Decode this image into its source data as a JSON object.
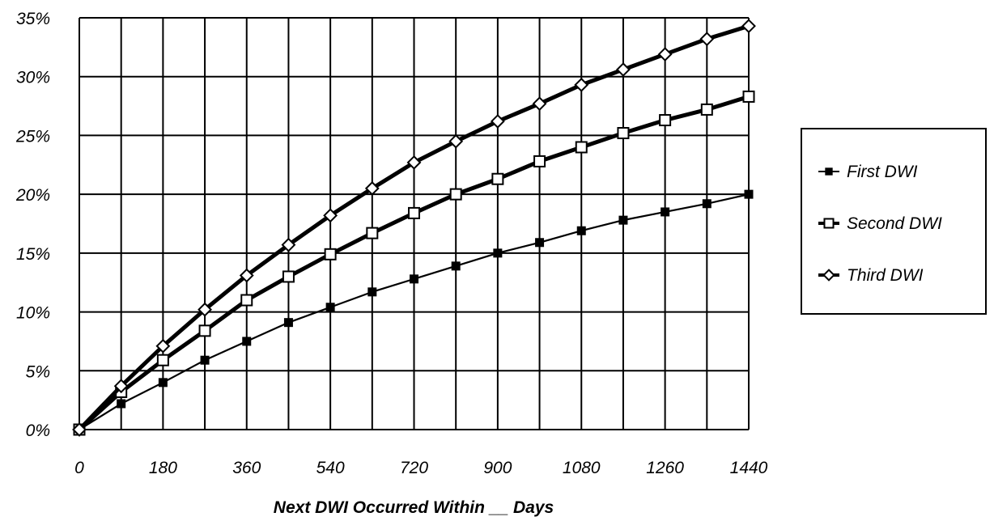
{
  "chart_data": {
    "type": "line",
    "x": [
      0,
      90,
      180,
      270,
      360,
      450,
      540,
      630,
      720,
      810,
      900,
      990,
      1080,
      1170,
      1260,
      1350,
      1440
    ],
    "xticks": [
      "0",
      "180",
      "360",
      "540",
      "720",
      "900",
      "1080",
      "1260",
      "1440"
    ],
    "yticks": [
      "0%",
      "5%",
      "10%",
      "15%",
      "20%",
      "25%",
      "30%",
      "35%"
    ],
    "xlim": [
      0,
      1440
    ],
    "ylim": [
      0,
      35
    ],
    "xlabel": "Next DWI Occurred Within __ Days",
    "ylabel": "",
    "grid": true,
    "legend_position": "right",
    "series": [
      {
        "name": "First DWI",
        "marker": "filled-square",
        "line": "thin",
        "values": [
          0,
          2.2,
          4.0,
          5.9,
          7.5,
          9.1,
          10.4,
          11.7,
          12.8,
          13.9,
          15.0,
          15.9,
          16.9,
          17.8,
          18.5,
          19.2,
          20.0
        ]
      },
      {
        "name": "Second DWI",
        "marker": "open-square",
        "line": "thick",
        "values": [
          0,
          3.2,
          5.9,
          8.4,
          11.0,
          13.0,
          14.9,
          16.7,
          18.4,
          20.0,
          21.3,
          22.8,
          24.0,
          25.2,
          26.3,
          27.2,
          28.3
        ]
      },
      {
        "name": "Third DWI",
        "marker": "open-diamond",
        "line": "thick",
        "values": [
          0,
          3.7,
          7.1,
          10.2,
          13.1,
          15.7,
          18.2,
          20.5,
          22.7,
          24.5,
          26.2,
          27.7,
          29.3,
          30.6,
          31.9,
          33.2,
          34.3
        ]
      }
    ]
  }
}
